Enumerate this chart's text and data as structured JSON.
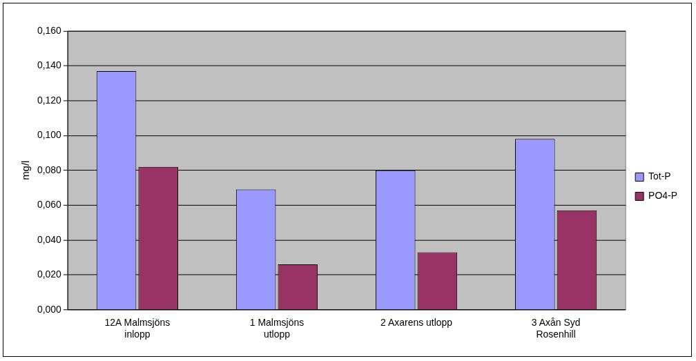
{
  "chart_data": {
    "type": "bar",
    "ylabel": "mg/l",
    "categories": [
      "12A Malmsjöns inlopp",
      "1 Malmsjöns utlopp",
      "2 Axarens utlopp",
      "3 Axån Syd Rosenhill"
    ],
    "series": [
      {
        "name": "Tot-P",
        "color": "#9999ff",
        "values": [
          0.137,
          0.069,
          0.08,
          0.098
        ]
      },
      {
        "name": "PO4-P",
        "color": "#993366",
        "values": [
          0.082,
          0.026,
          0.033,
          0.057
        ]
      }
    ],
    "ylim": [
      0,
      0.16
    ],
    "yticks": [
      {
        "value": 0,
        "label": "0,000"
      },
      {
        "value": 0.02,
        "label": "0,020"
      },
      {
        "value": 0.04,
        "label": "0,040"
      },
      {
        "value": 0.06,
        "label": "0,060"
      },
      {
        "value": 0.08,
        "label": "0,080"
      },
      {
        "value": 0.1,
        "label": "0,100"
      },
      {
        "value": 0.12,
        "label": "0,120"
      },
      {
        "value": 0.14,
        "label": "0,140"
      },
      {
        "value": 0.16,
        "label": "0,160"
      }
    ],
    "grid": "y",
    "legend": "right"
  }
}
